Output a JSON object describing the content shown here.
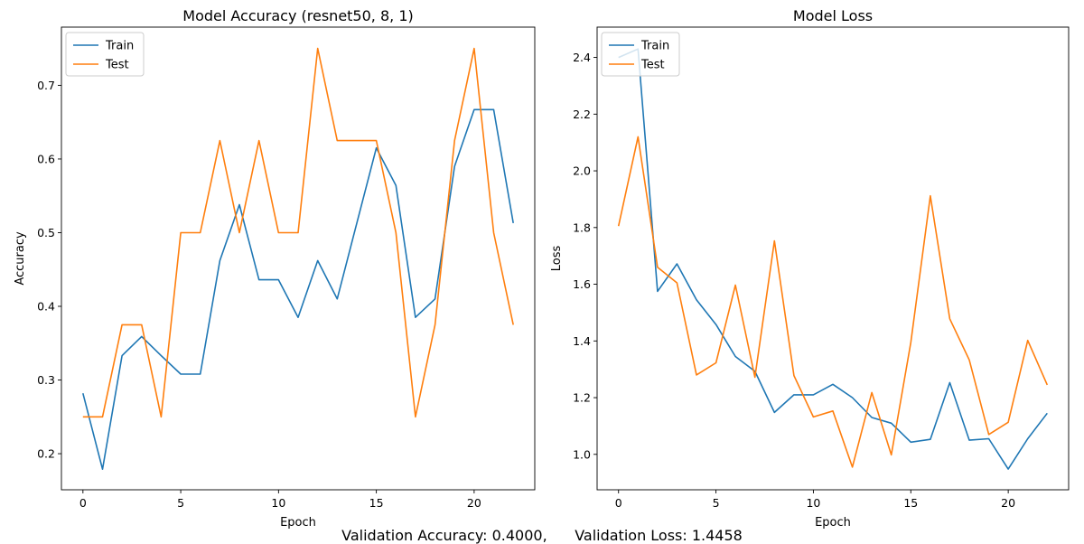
{
  "colors": {
    "train": "#1f77b4",
    "test": "#ff7f0e"
  },
  "footer": {
    "text": "Validation Accuracy: 0.4000,      Validation Loss: 1.4458"
  },
  "chart_data": [
    {
      "type": "line",
      "title": "Model Accuracy (resnet50, 8, 1)",
      "xlabel": "Epoch",
      "ylabel": "Accuracy",
      "xlim": [
        -1.1,
        23.1
      ],
      "ylim": [
        0.151,
        0.779
      ],
      "xticks": [
        0,
        5,
        10,
        15,
        20
      ],
      "yticks": [
        0.2,
        0.3,
        0.4,
        0.5,
        0.6,
        0.7
      ],
      "legend": "top-left",
      "x": [
        0,
        1,
        2,
        3,
        4,
        5,
        6,
        7,
        8,
        9,
        10,
        11,
        12,
        13,
        14,
        15,
        16,
        17,
        18,
        19,
        20,
        21,
        22
      ],
      "series": [
        {
          "name": "Train",
          "values": [
            0.282,
            0.179,
            0.333,
            0.359,
            0.333,
            0.308,
            0.308,
            0.462,
            0.538,
            0.436,
            0.436,
            0.385,
            0.462,
            0.41,
            0.513,
            0.615,
            0.564,
            0.385,
            0.41,
            0.59,
            0.667,
            0.667,
            0.513
          ]
        },
        {
          "name": "Test",
          "values": [
            0.25,
            0.25,
            0.375,
            0.375,
            0.25,
            0.5,
            0.5,
            0.625,
            0.5,
            0.625,
            0.5,
            0.5,
            0.75,
            0.625,
            0.625,
            0.625,
            0.5,
            0.25,
            0.375,
            0.625,
            0.75,
            0.5,
            0.375
          ]
        }
      ]
    },
    {
      "type": "line",
      "title": "Model Loss",
      "xlabel": "Epoch",
      "ylabel": "Loss",
      "xlim": [
        -1.1,
        23.1
      ],
      "ylim": [
        0.875,
        2.507
      ],
      "xticks": [
        0,
        5,
        10,
        15,
        20
      ],
      "yticks": [
        1.0,
        1.2,
        1.4,
        1.6,
        1.8,
        2.0,
        2.2,
        2.4
      ],
      "legend": "top-left",
      "x": [
        0,
        1,
        2,
        3,
        4,
        5,
        6,
        7,
        8,
        9,
        10,
        11,
        12,
        13,
        14,
        15,
        16,
        17,
        18,
        19,
        20,
        21,
        22
      ],
      "series": [
        {
          "name": "Train",
          "values": [
            2.4,
            2.43,
            1.575,
            1.672,
            1.545,
            1.458,
            1.345,
            1.293,
            1.148,
            1.21,
            1.21,
            1.247,
            1.2,
            1.13,
            1.11,
            1.043,
            1.053,
            1.253,
            1.05,
            1.055,
            0.948,
            1.055,
            1.145
          ]
        },
        {
          "name": "Test",
          "values": [
            1.805,
            2.12,
            1.66,
            1.605,
            1.28,
            1.323,
            1.597,
            1.272,
            1.753,
            1.278,
            1.132,
            1.153,
            0.955,
            1.218,
            0.998,
            1.395,
            1.912,
            1.478,
            1.333,
            1.07,
            1.113,
            1.402,
            1.245
          ]
        }
      ]
    }
  ]
}
